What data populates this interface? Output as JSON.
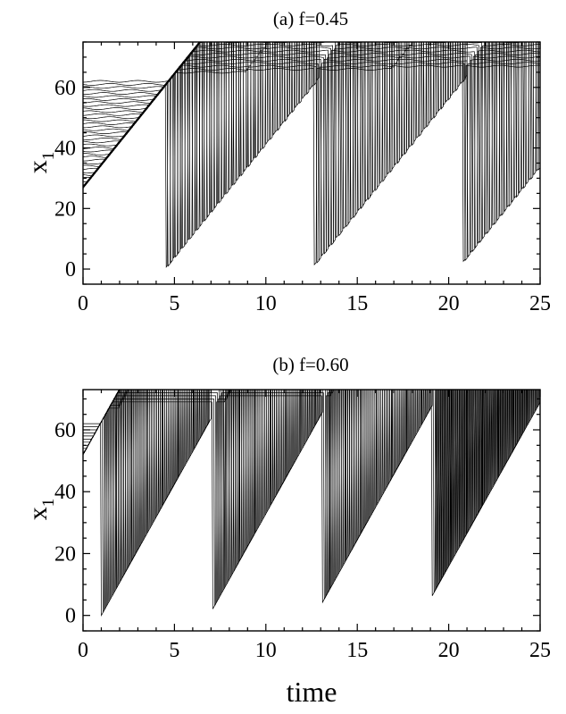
{
  "figure": {
    "xlabel": "time"
  },
  "chart_data": [
    {
      "type": "line",
      "title": "(a) f=0.45",
      "ylabel": "x",
      "ylabel_subscript": "1",
      "xlim": [
        0,
        25
      ],
      "ylim": [
        -5,
        75
      ],
      "xticks": [
        0,
        5,
        10,
        15,
        20,
        25
      ],
      "yticks": [
        0,
        20,
        40,
        60
      ],
      "grid": false,
      "legend": "none",
      "series_count": 63,
      "series_spacing": 1,
      "line_color": "#000000",
      "phase_slip": {
        "slope": 7.5,
        "offset_at_t0": 27,
        "start_times": [
          4.5,
          12.5,
          20.5
        ],
        "drift_per_cycle": 1.0
      },
      "wiggle_amplitude": 0.3
    },
    {
      "type": "line",
      "title": "(b) f=0.60",
      "ylabel": "x",
      "ylabel_subscript": "1",
      "xlim": [
        0,
        25
      ],
      "ylim": [
        -5,
        73
      ],
      "xticks": [
        0,
        5,
        10,
        15,
        20,
        25
      ],
      "yticks": [
        0,
        20,
        40,
        60
      ],
      "grid": false,
      "legend": "none",
      "series_count": 63,
      "series_spacing": 1,
      "line_color": "#000000",
      "phase_slip": {
        "slope": 10.6,
        "offset_at_t0": 52,
        "start_times": [
          1.0,
          6.9,
          12.7,
          18.5,
          24.3
        ],
        "drift_per_cycle": 2.0
      },
      "wiggle_amplitude": 0.0
    }
  ]
}
